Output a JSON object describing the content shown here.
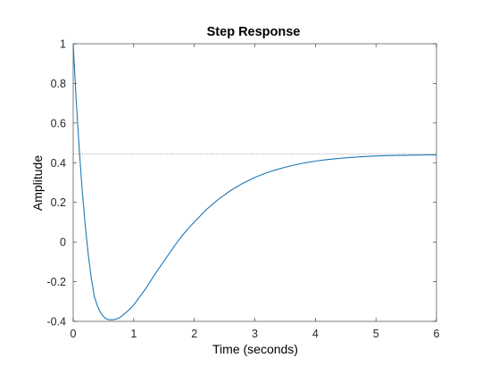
{
  "chart_data": {
    "type": "line",
    "title": "Step Response",
    "xlabel": "Time (seconds)",
    "ylabel": "Amplitude",
    "xlim": [
      0,
      6
    ],
    "ylim": [
      -0.4,
      1
    ],
    "x_ticks": [
      0,
      1,
      2,
      3,
      4,
      5,
      6
    ],
    "x_tick_labels": [
      "0",
      "1",
      "2",
      "3",
      "4",
      "5",
      "6"
    ],
    "y_ticks": [
      -0.4,
      -0.2,
      0,
      0.2,
      0.4,
      0.6,
      0.8,
      1
    ],
    "y_tick_labels": [
      "-0.4",
      "-0.2",
      "0",
      "0.2",
      "0.4",
      "0.6",
      "0.8",
      "1"
    ],
    "grid": false,
    "series": [
      {
        "color": "#1f77b4",
        "x": [
          0,
          0.05,
          0.1,
          0.15,
          0.2,
          0.25,
          0.3,
          0.35,
          0.4,
          0.45,
          0.5,
          0.55,
          0.6,
          0.65,
          0.7,
          0.75,
          0.8,
          0.85,
          0.9,
          0.95,
          1.0,
          1.1,
          1.2,
          1.3,
          1.4,
          1.5,
          1.6,
          1.7,
          1.8,
          1.9,
          2.0,
          2.2,
          2.4,
          2.6,
          2.8,
          3.0,
          3.2,
          3.4,
          3.6,
          3.8,
          4.0,
          4.2,
          4.4,
          4.6,
          4.8,
          5.0,
          5.2,
          5.4,
          5.6,
          5.8,
          6.0
        ],
        "y": [
          1.0,
          0.714,
          0.468,
          0.257,
          0.08,
          -0.066,
          -0.184,
          -0.276,
          -0.322,
          -0.355,
          -0.376,
          -0.388,
          -0.392,
          -0.392,
          -0.389,
          -0.384,
          -0.374,
          -0.361,
          -0.348,
          -0.334,
          -0.317,
          -0.276,
          -0.234,
          -0.186,
          -0.14,
          -0.096,
          -0.052,
          -0.008,
          0.032,
          0.068,
          0.101,
          0.164,
          0.216,
          0.26,
          0.296,
          0.326,
          0.35,
          0.369,
          0.385,
          0.398,
          0.408,
          0.416,
          0.422,
          0.427,
          0.431,
          0.434,
          0.436,
          0.437,
          0.438,
          0.439,
          0.44
        ]
      }
    ],
    "reference_line": {
      "y": 0.444,
      "style": "dotted",
      "color": "#808080"
    }
  }
}
